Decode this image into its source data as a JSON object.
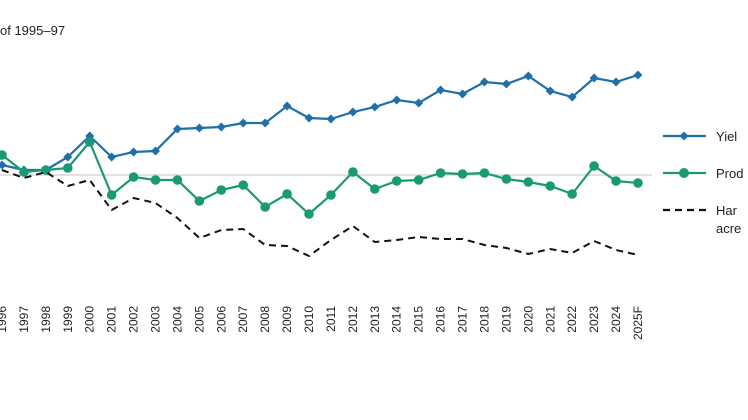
{
  "chart_data": {
    "type": "line",
    "title": "of 1995–97",
    "categories": [
      "1996",
      "1997",
      "1998",
      "1999",
      "2000",
      "2001",
      "2002",
      "2003",
      "2004",
      "2005",
      "2006",
      "2007",
      "2008",
      "2009",
      "2010",
      "2011",
      "2012",
      "2013",
      "2014",
      "2015",
      "2016",
      "2017",
      "2018",
      "2019",
      "2020",
      "2021",
      "2022",
      "2023",
      "2024",
      "2025F"
    ],
    "ylim": [
      50,
      160
    ],
    "reference_line": 100,
    "series": [
      {
        "name": "Yiel",
        "color": "#1f6fa8",
        "marker": "diamond",
        "dash": false,
        "values": [
          104,
          102,
          102,
          107.2,
          115.6,
          107.2,
          109.2,
          109.6,
          118.4,
          118.8,
          119.2,
          120.8,
          120.8,
          127.6,
          122.8,
          122.4,
          125.2,
          127.2,
          130,
          128.8,
          134,
          132.4,
          137.2,
          136.4,
          139.6,
          133.6,
          131.2,
          138.8,
          137.2,
          140
        ]
      },
      {
        "name": "Prod",
        "color": "#1a9a74",
        "marker": "circle",
        "dash": false,
        "values": [
          108,
          101.2,
          102,
          102.8,
          113.2,
          92,
          99.2,
          98,
          98,
          89.6,
          94,
          96,
          87.2,
          92.4,
          84.4,
          92,
          101.2,
          94.4,
          97.6,
          98,
          100.8,
          100.4,
          100.8,
          98.4,
          97.2,
          95.6,
          92.4,
          103.6,
          97.6,
          96.8
        ]
      },
      {
        "name": [
          "Har",
          "acre"
        ],
        "color": "#111111",
        "marker": "none",
        "dash": true,
        "values": [
          102,
          98.8,
          101.2,
          95.6,
          98,
          86,
          90.8,
          88.8,
          82.8,
          74.8,
          78,
          78.4,
          72,
          71.6,
          67.6,
          74,
          79.6,
          73.2,
          74,
          75.2,
          74.4,
          74.4,
          72,
          70.8,
          68.4,
          70.4,
          68.8,
          73.6,
          70,
          68
        ]
      }
    ]
  }
}
